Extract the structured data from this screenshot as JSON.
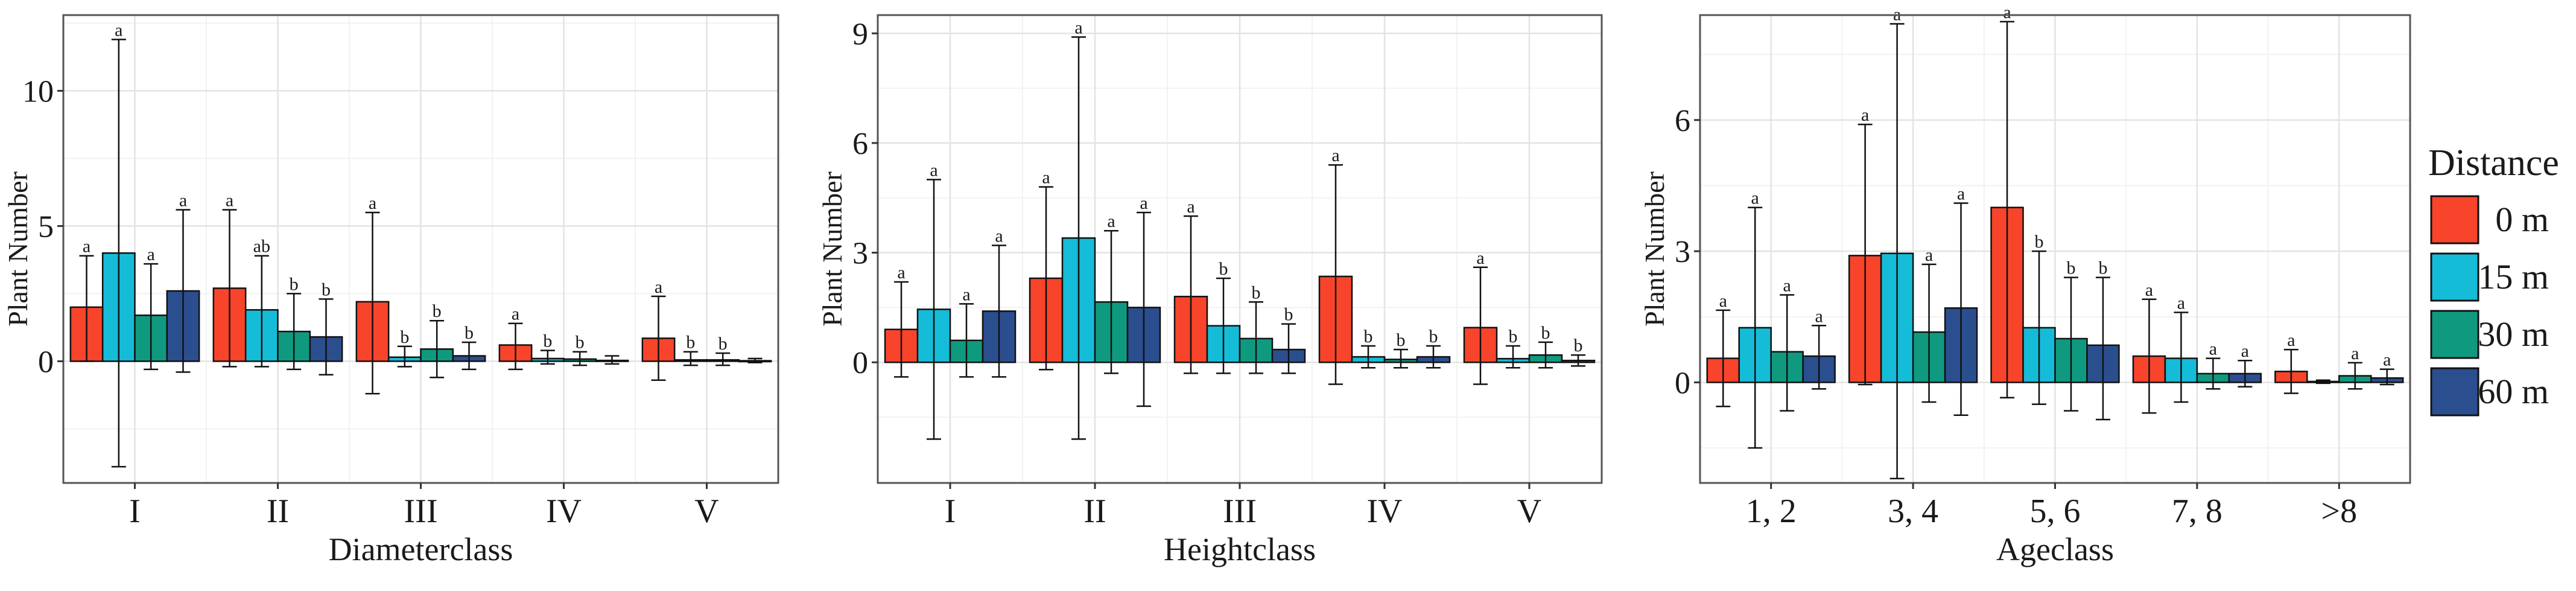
{
  "legend": {
    "title": "Distance",
    "items": [
      {
        "label": "0 m",
        "color": "#F8442B"
      },
      {
        "label": "15 m",
        "color": "#15BCD8"
      },
      {
        "label": "30 m",
        "color": "#0F9A80"
      },
      {
        "label": "60 m",
        "color": "#2B4E8F"
      }
    ]
  },
  "chart_data": [
    {
      "type": "bar",
      "title": "",
      "xlabel": "Diameterclass",
      "ylabel": "Plant Number",
      "ylim": [
        -4.5,
        12.8
      ],
      "yticks": [
        0,
        5,
        10
      ],
      "ytick_labels": [
        "0",
        "5",
        "10"
      ],
      "grid": true,
      "categories": [
        "I",
        "II",
        "III",
        "IV",
        "V"
      ],
      "series": [
        {
          "name": "0 m",
          "values": [
            2.0,
            2.7,
            2.2,
            0.6,
            0.85
          ],
          "err_low": [
            0.0,
            -0.2,
            -1.2,
            -0.3,
            -0.7
          ],
          "err_high": [
            3.9,
            5.6,
            5.5,
            1.4,
            2.4
          ],
          "labels": [
            "a",
            "a",
            "a",
            "a",
            "a"
          ]
        },
        {
          "name": "15 m",
          "values": [
            4.0,
            1.9,
            0.15,
            0.1,
            0.05
          ],
          "err_low": [
            -3.9,
            -0.2,
            -0.2,
            -0.1,
            -0.15
          ],
          "err_high": [
            11.9,
            3.9,
            0.55,
            0.4,
            0.35
          ],
          "labels": [
            "a",
            "ab",
            "b",
            "b",
            "b"
          ]
        },
        {
          "name": "30 m",
          "values": [
            1.7,
            1.1,
            0.45,
            0.08,
            0.05
          ],
          "err_low": [
            -0.3,
            -0.3,
            -0.6,
            -0.15,
            -0.15
          ],
          "err_high": [
            3.6,
            2.5,
            1.5,
            0.35,
            0.3
          ],
          "labels": [
            "a",
            "b",
            "b",
            "b",
            "b"
          ]
        },
        {
          "name": "60 m",
          "values": [
            2.6,
            0.9,
            0.2,
            0.03,
            0.02
          ],
          "err_low": [
            -0.4,
            -0.5,
            -0.3,
            -0.1,
            -0.05
          ],
          "err_high": [
            5.6,
            2.3,
            0.7,
            0.2,
            0.1
          ],
          "labels": [
            "a",
            "b",
            "b",
            "",
            ""
          ]
        }
      ]
    },
    {
      "type": "bar",
      "title": "",
      "xlabel": "Heightclass",
      "ylabel": "Plant Number",
      "ylim": [
        -3.3,
        9.5
      ],
      "yticks": [
        0,
        3,
        6,
        9
      ],
      "ytick_labels": [
        "0",
        "3",
        "6",
        "9"
      ],
      "grid": true,
      "categories": [
        "I",
        "II",
        "III",
        "IV",
        "V"
      ],
      "series": [
        {
          "name": "0 m",
          "values": [
            0.9,
            2.3,
            1.8,
            2.35,
            0.95
          ],
          "err_low": [
            -0.4,
            -0.2,
            -0.3,
            -0.6,
            -0.6
          ],
          "err_high": [
            2.2,
            4.8,
            4.0,
            5.4,
            2.6
          ],
          "labels": [
            "a",
            "a",
            "a",
            "a",
            "a"
          ]
        },
        {
          "name": "15 m",
          "values": [
            1.45,
            3.4,
            1.0,
            0.15,
            0.1
          ],
          "err_low": [
            -2.1,
            -2.1,
            -0.3,
            -0.15,
            -0.15
          ],
          "err_high": [
            5.0,
            8.9,
            2.3,
            0.45,
            0.45
          ],
          "labels": [
            "a",
            "a",
            "b",
            "b",
            "b"
          ]
        },
        {
          "name": "30 m",
          "values": [
            0.6,
            1.65,
            0.65,
            0.08,
            0.2
          ],
          "err_low": [
            -0.4,
            -0.3,
            -0.3,
            -0.15,
            -0.15
          ],
          "err_high": [
            1.6,
            3.6,
            1.65,
            0.35,
            0.55
          ],
          "labels": [
            "a",
            "a",
            "b",
            "b",
            "b"
          ]
        },
        {
          "name": "60 m",
          "values": [
            1.4,
            1.5,
            0.35,
            0.15,
            0.05
          ],
          "err_low": [
            -0.4,
            -1.2,
            -0.3,
            -0.15,
            -0.1
          ],
          "err_high": [
            3.2,
            4.1,
            1.05,
            0.45,
            0.2
          ],
          "labels": [
            "a",
            "a",
            "b",
            "b",
            "b"
          ]
        }
      ]
    },
    {
      "type": "bar",
      "title": "",
      "xlabel": "Ageclass",
      "ylabel": "Plant Number",
      "ylim": [
        -2.3,
        8.4
      ],
      "yticks": [
        0,
        3,
        6
      ],
      "ytick_labels": [
        "0",
        "3",
        "6"
      ],
      "grid": true,
      "categories": [
        "1, 2",
        "3, 4",
        "5, 6",
        "7, 8",
        ">8"
      ],
      "series": [
        {
          "name": "0 m",
          "values": [
            0.55,
            2.9,
            4.0,
            0.6,
            0.25
          ],
          "err_low": [
            -0.55,
            -0.05,
            -0.35,
            -0.7,
            -0.25
          ],
          "err_high": [
            1.65,
            5.9,
            8.25,
            1.9,
            0.75
          ],
          "labels": [
            "a",
            "a",
            "a",
            "a",
            "a"
          ]
        },
        {
          "name": "15 m",
          "values": [
            1.25,
            2.95,
            1.25,
            0.55,
            0.02
          ],
          "err_low": [
            -1.5,
            -2.2,
            -0.5,
            -0.45,
            -0.02
          ],
          "err_high": [
            4.0,
            8.2,
            3.0,
            1.6,
            0.05
          ],
          "labels": [
            "a",
            "a",
            "b",
            "a",
            ""
          ]
        },
        {
          "name": "30 m",
          "values": [
            0.7,
            1.15,
            1.0,
            0.2,
            0.15
          ],
          "err_low": [
            -0.65,
            -0.45,
            -0.65,
            -0.15,
            -0.15
          ],
          "err_high": [
            2.0,
            2.7,
            2.4,
            0.55,
            0.45
          ],
          "labels": [
            "a",
            "a",
            "b",
            "a",
            "a"
          ]
        },
        {
          "name": "60 m",
          "values": [
            0.6,
            1.7,
            0.85,
            0.2,
            0.1
          ],
          "err_low": [
            -0.15,
            -0.75,
            -0.85,
            -0.1,
            -0.05
          ],
          "err_high": [
            1.3,
            4.1,
            2.4,
            0.5,
            0.3
          ],
          "labels": [
            "a",
            "a",
            "b",
            "a",
            "a"
          ]
        }
      ]
    }
  ]
}
